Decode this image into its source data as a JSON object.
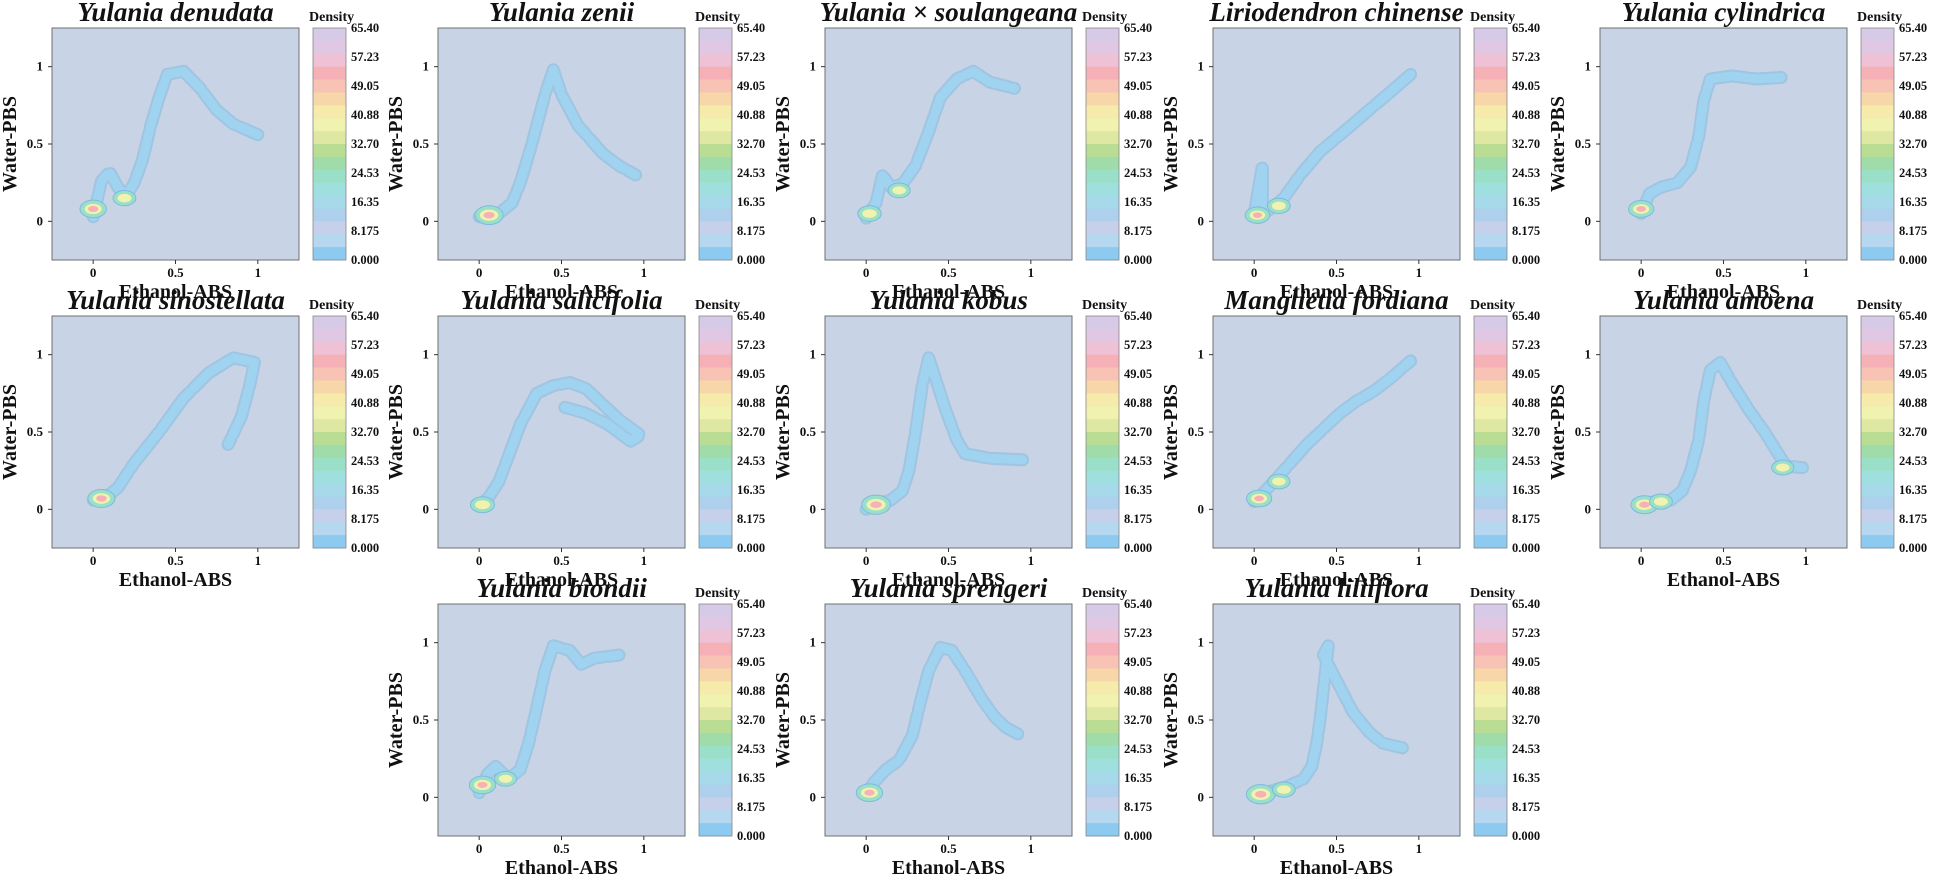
{
  "figure_meta": {
    "colorbar_title": "Density",
    "colorbar_ticks": [
      "65.40",
      "57.23",
      "49.05",
      "40.88",
      "32.70",
      "24.53",
      "16.35",
      "8.175",
      "0.000"
    ],
    "colorbar_colors": [
      "#d7cae6",
      "#e0c7e4",
      "#eec1d6",
      "#f5b1b6",
      "#f8c3b4",
      "#f7d7aa",
      "#f6ebaa",
      "#f1f1b0",
      "#dfe8a2",
      "#b9de93",
      "#9fdcaa",
      "#9ae0c8",
      "#9fe0df",
      "#a6d9e9",
      "#aed0ec",
      "#c6d0ea",
      "#b5d7ef",
      "#8ccaf2"
    ],
    "background_color": "#c8d4e5",
    "contour_color": "#9fd3f0",
    "contour_edge": "#7fb8e0"
  },
  "chart_data": [
    {
      "type": "contour",
      "title": "Yulania denudata",
      "xlabel": "Ethanol-ABS",
      "ylabel": "Water-PBS",
      "xticks": [
        "0",
        "0.5",
        "1"
      ],
      "yticks": [
        "0",
        "0.5",
        "1"
      ],
      "xlim": [
        -0.25,
        1.25
      ],
      "ylim": [
        -0.25,
        1.25
      ],
      "path": [
        [
          0.0,
          0.03
        ],
        [
          0.02,
          0.12
        ],
        [
          0.05,
          0.26
        ],
        [
          0.1,
          0.32
        ],
        [
          0.15,
          0.22
        ],
        [
          0.2,
          0.16
        ],
        [
          0.25,
          0.25
        ],
        [
          0.3,
          0.4
        ],
        [
          0.35,
          0.62
        ],
        [
          0.4,
          0.8
        ],
        [
          0.45,
          0.95
        ],
        [
          0.55,
          0.97
        ],
        [
          0.65,
          0.86
        ],
        [
          0.75,
          0.72
        ],
        [
          0.85,
          0.63
        ],
        [
          1.0,
          0.56
        ]
      ],
      "hotspots": [
        [
          0.0,
          0.08,
          0.7
        ],
        [
          0.19,
          0.15,
          0.4
        ]
      ]
    },
    {
      "type": "contour",
      "title": "Yulania zenii",
      "xlabel": "Ethanol-ABS",
      "ylabel": "Water-PBS",
      "xticks": [
        "0",
        "0.5",
        "1"
      ],
      "yticks": [
        "0",
        "0.5",
        "1"
      ],
      "xlim": [
        -0.25,
        1.25
      ],
      "ylim": [
        -0.25,
        1.25
      ],
      "path": [
        [
          0.0,
          0.03
        ],
        [
          0.06,
          0.04
        ],
        [
          0.12,
          0.05
        ],
        [
          0.2,
          0.12
        ],
        [
          0.25,
          0.25
        ],
        [
          0.32,
          0.5
        ],
        [
          0.4,
          0.82
        ],
        [
          0.45,
          0.98
        ],
        [
          0.5,
          0.82
        ],
        [
          0.6,
          0.62
        ],
        [
          0.75,
          0.44
        ],
        [
          0.85,
          0.36
        ],
        [
          0.95,
          0.3
        ]
      ],
      "hotspots": [
        [
          0.06,
          0.04,
          0.85
        ]
      ]
    },
    {
      "type": "contour",
      "title": "Yulania × soulangeana",
      "xlabel": "Ethanol-ABS",
      "ylabel": "Water-PBS",
      "xticks": [
        "0",
        "0.5",
        "1"
      ],
      "yticks": [
        "0",
        "0.5",
        "1"
      ],
      "xlim": [
        -0.25,
        1.25
      ],
      "ylim": [
        -0.25,
        1.25
      ],
      "path": [
        [
          0.0,
          0.02
        ],
        [
          0.06,
          0.12
        ],
        [
          0.1,
          0.3
        ],
        [
          0.15,
          0.22
        ],
        [
          0.22,
          0.24
        ],
        [
          0.3,
          0.36
        ],
        [
          0.38,
          0.58
        ],
        [
          0.45,
          0.8
        ],
        [
          0.55,
          0.92
        ],
        [
          0.65,
          0.97
        ],
        [
          0.75,
          0.9
        ],
        [
          0.9,
          0.86
        ]
      ],
      "hotspots": [
        [
          0.02,
          0.05,
          0.45
        ],
        [
          0.2,
          0.2,
          0.35
        ]
      ]
    },
    {
      "type": "contour",
      "title": "Liriodendron chinense",
      "xlabel": "Ethanol-ABS",
      "ylabel": "Water-PBS",
      "xticks": [
        "0",
        "0.5",
        "1"
      ],
      "yticks": [
        "0",
        "0.5",
        "1"
      ],
      "xlim": [
        -0.25,
        1.25
      ],
      "ylim": [
        -0.25,
        1.25
      ],
      "path": [
        [
          0.0,
          0.05
        ],
        [
          0.05,
          0.36
        ],
        [
          0.05,
          0.05
        ],
        [
          0.1,
          0.08
        ],
        [
          0.18,
          0.15
        ],
        [
          0.28,
          0.3
        ],
        [
          0.4,
          0.45
        ],
        [
          0.5,
          0.54
        ],
        [
          0.6,
          0.63
        ],
        [
          0.72,
          0.74
        ],
        [
          0.82,
          0.83
        ],
        [
          0.95,
          0.95
        ]
      ],
      "hotspots": [
        [
          0.02,
          0.04,
          0.55
        ],
        [
          0.15,
          0.1,
          0.4
        ]
      ]
    },
    {
      "type": "contour",
      "title": "Yulania cylindrica",
      "xlabel": "Ethanol-ABS",
      "ylabel": "Water-PBS",
      "xticks": [
        "0",
        "0.5",
        "1"
      ],
      "yticks": [
        "0",
        "0.5",
        "1"
      ],
      "xlim": [
        -0.25,
        1.25
      ],
      "ylim": [
        -0.25,
        1.25
      ],
      "path": [
        [
          0.0,
          0.05
        ],
        [
          0.05,
          0.18
        ],
        [
          0.12,
          0.22
        ],
        [
          0.22,
          0.25
        ],
        [
          0.3,
          0.35
        ],
        [
          0.35,
          0.55
        ],
        [
          0.38,
          0.78
        ],
        [
          0.42,
          0.92
        ],
        [
          0.55,
          0.94
        ],
        [
          0.7,
          0.92
        ],
        [
          0.85,
          0.93
        ]
      ],
      "hotspots": [
        [
          0.0,
          0.08,
          0.6
        ]
      ]
    },
    {
      "type": "contour",
      "title": "Yulania sinostellata",
      "xlabel": "Ethanol-ABS",
      "ylabel": "Water-PBS",
      "xticks": [
        "0",
        "0.5",
        "1"
      ],
      "yticks": [
        "0",
        "0.5",
        "1"
      ],
      "xlim": [
        -0.25,
        1.25
      ],
      "ylim": [
        -0.25,
        1.25
      ],
      "path": [
        [
          0.0,
          0.06
        ],
        [
          0.08,
          0.08
        ],
        [
          0.15,
          0.14
        ],
        [
          0.25,
          0.3
        ],
        [
          0.4,
          0.5
        ],
        [
          0.55,
          0.72
        ],
        [
          0.7,
          0.88
        ],
        [
          0.85,
          0.98
        ],
        [
          0.98,
          0.95
        ],
        [
          0.95,
          0.8
        ],
        [
          0.9,
          0.6
        ],
        [
          0.82,
          0.42
        ]
      ],
      "hotspots": [
        [
          0.05,
          0.07,
          0.75
        ]
      ]
    },
    {
      "type": "contour",
      "title": "Yulania salicifolia",
      "xlabel": "Ethanol-ABS",
      "ylabel": "Water-PBS",
      "xticks": [
        "0",
        "0.5",
        "1"
      ],
      "yticks": [
        "0",
        "0.5",
        "1"
      ],
      "xlim": [
        -0.25,
        1.25
      ],
      "ylim": [
        -0.25,
        1.25
      ],
      "path": [
        [
          0.0,
          0.02
        ],
        [
          0.06,
          0.08
        ],
        [
          0.12,
          0.18
        ],
        [
          0.18,
          0.35
        ],
        [
          0.25,
          0.55
        ],
        [
          0.35,
          0.75
        ],
        [
          0.45,
          0.8
        ],
        [
          0.55,
          0.82
        ],
        [
          0.65,
          0.78
        ],
        [
          0.75,
          0.68
        ],
        [
          0.85,
          0.58
        ],
        [
          0.98,
          0.48
        ],
        [
          0.92,
          0.44
        ],
        [
          0.78,
          0.55
        ],
        [
          0.65,
          0.62
        ],
        [
          0.52,
          0.66
        ]
      ],
      "hotspots": [
        [
          0.02,
          0.03,
          0.5
        ]
      ]
    },
    {
      "type": "contour",
      "title": "Yulania kobus",
      "xlabel": "Ethanol-ABS",
      "ylabel": "Water-PBS",
      "xticks": [
        "0",
        "0.5",
        "1"
      ],
      "yticks": [
        "0",
        "0.5",
        "1"
      ],
      "xlim": [
        -0.25,
        1.25
      ],
      "ylim": [
        -0.25,
        1.25
      ],
      "path": [
        [
          0.0,
          0.0
        ],
        [
          0.08,
          0.04
        ],
        [
          0.15,
          0.06
        ],
        [
          0.22,
          0.12
        ],
        [
          0.26,
          0.25
        ],
        [
          0.3,
          0.5
        ],
        [
          0.34,
          0.8
        ],
        [
          0.38,
          0.98
        ],
        [
          0.42,
          0.85
        ],
        [
          0.48,
          0.65
        ],
        [
          0.55,
          0.45
        ],
        [
          0.6,
          0.36
        ],
        [
          0.75,
          0.33
        ],
        [
          0.95,
          0.32
        ]
      ],
      "hotspots": [
        [
          0.06,
          0.03,
          0.9
        ]
      ]
    },
    {
      "type": "contour",
      "title": "Manglietia fordiana",
      "xlabel": "Ethanol-ABS",
      "ylabel": "Water-PBS",
      "xticks": [
        "0",
        "0.5",
        "1"
      ],
      "yticks": [
        "0",
        "0.5",
        "1"
      ],
      "xlim": [
        -0.25,
        1.25
      ],
      "ylim": [
        -0.25,
        1.25
      ],
      "path": [
        [
          0.0,
          0.05
        ],
        [
          0.05,
          0.1
        ],
        [
          0.12,
          0.18
        ],
        [
          0.22,
          0.3
        ],
        [
          0.32,
          0.42
        ],
        [
          0.42,
          0.52
        ],
        [
          0.52,
          0.62
        ],
        [
          0.62,
          0.7
        ],
        [
          0.72,
          0.76
        ],
        [
          0.82,
          0.84
        ],
        [
          0.95,
          0.96
        ]
      ],
      "hotspots": [
        [
          0.03,
          0.07,
          0.6
        ],
        [
          0.15,
          0.18,
          0.35
        ]
      ]
    },
    {
      "type": "contour",
      "title": "Yulania amoena",
      "xlabel": "Ethanol-ABS",
      "ylabel": "Water-PBS",
      "xticks": [
        "0",
        "0.5",
        "1"
      ],
      "yticks": [
        "0",
        "0.5",
        "1"
      ],
      "xlim": [
        -0.25,
        1.25
      ],
      "ylim": [
        -0.25,
        1.25
      ],
      "path": [
        [
          0.0,
          0.03
        ],
        [
          0.08,
          0.05
        ],
        [
          0.18,
          0.06
        ],
        [
          0.25,
          0.12
        ],
        [
          0.3,
          0.25
        ],
        [
          0.35,
          0.45
        ],
        [
          0.38,
          0.7
        ],
        [
          0.42,
          0.9
        ],
        [
          0.48,
          0.95
        ],
        [
          0.55,
          0.82
        ],
        [
          0.65,
          0.65
        ],
        [
          0.75,
          0.5
        ],
        [
          0.82,
          0.38
        ],
        [
          0.88,
          0.28
        ],
        [
          0.98,
          0.27
        ]
      ],
      "hotspots": [
        [
          0.02,
          0.03,
          0.75
        ],
        [
          0.12,
          0.05,
          0.4
        ],
        [
          0.86,
          0.27,
          0.35
        ]
      ]
    },
    {
      "type": "contour",
      "title": "Yulania biondii",
      "xlabel": "Ethanol-ABS",
      "ylabel": "Water-PBS",
      "xticks": [
        "0",
        "0.5",
        "1"
      ],
      "yticks": [
        "0",
        "0.5",
        "1"
      ],
      "xlim": [
        -0.25,
        1.25
      ],
      "ylim": [
        -0.25,
        1.25
      ],
      "path": [
        [
          0.0,
          0.03
        ],
        [
          0.05,
          0.15
        ],
        [
          0.1,
          0.2
        ],
        [
          0.18,
          0.12
        ],
        [
          0.25,
          0.18
        ],
        [
          0.3,
          0.35
        ],
        [
          0.35,
          0.58
        ],
        [
          0.4,
          0.82
        ],
        [
          0.45,
          0.98
        ],
        [
          0.55,
          0.95
        ],
        [
          0.62,
          0.86
        ],
        [
          0.7,
          0.9
        ],
        [
          0.85,
          0.92
        ]
      ],
      "hotspots": [
        [
          0.02,
          0.08,
          0.7
        ],
        [
          0.16,
          0.12,
          0.35
        ]
      ]
    },
    {
      "type": "contour",
      "title": "Yulania sprengeri",
      "xlabel": "Ethanol-ABS",
      "ylabel": "Water-PBS",
      "xticks": [
        "0",
        "0.5",
        "1"
      ],
      "yticks": [
        "0",
        "0.5",
        "1"
      ],
      "xlim": [
        -0.25,
        1.25
      ],
      "ylim": [
        -0.25,
        1.25
      ],
      "path": [
        [
          0.0,
          0.02
        ],
        [
          0.05,
          0.1
        ],
        [
          0.12,
          0.18
        ],
        [
          0.2,
          0.24
        ],
        [
          0.28,
          0.4
        ],
        [
          0.33,
          0.62
        ],
        [
          0.38,
          0.82
        ],
        [
          0.45,
          0.97
        ],
        [
          0.52,
          0.95
        ],
        [
          0.6,
          0.82
        ],
        [
          0.7,
          0.64
        ],
        [
          0.78,
          0.52
        ],
        [
          0.85,
          0.45
        ],
        [
          0.92,
          0.41
        ]
      ],
      "hotspots": [
        [
          0.02,
          0.03,
          0.7
        ]
      ]
    },
    {
      "type": "contour",
      "title": "Yulania liliiflora",
      "xlabel": "Ethanol-ABS",
      "ylabel": "Water-PBS",
      "xticks": [
        "0",
        "0.5",
        "1"
      ],
      "yticks": [
        "0",
        "0.5",
        "1"
      ],
      "xlim": [
        -0.25,
        1.25
      ],
      "ylim": [
        -0.25,
        1.25
      ],
      "path": [
        [
          0.0,
          0.02
        ],
        [
          0.1,
          0.04
        ],
        [
          0.2,
          0.07
        ],
        [
          0.3,
          0.12
        ],
        [
          0.35,
          0.2
        ],
        [
          0.38,
          0.35
        ],
        [
          0.4,
          0.5
        ],
        [
          0.45,
          0.98
        ],
        [
          0.42,
          0.92
        ],
        [
          0.6,
          0.55
        ],
        [
          0.7,
          0.42
        ],
        [
          0.78,
          0.35
        ],
        [
          0.9,
          0.32
        ]
      ],
      "hotspots": [
        [
          0.04,
          0.02,
          0.9
        ],
        [
          0.18,
          0.05,
          0.4
        ]
      ]
    }
  ]
}
